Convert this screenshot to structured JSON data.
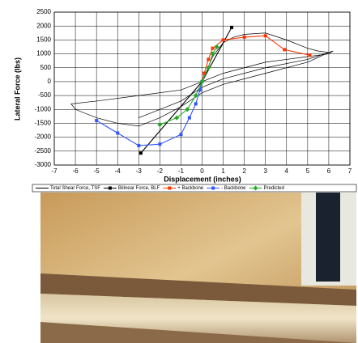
{
  "chart_data": {
    "type": "line",
    "x_label": "Displacement (inches)",
    "y_label": "Lateral Force (lbs)",
    "xlim": [
      -7,
      7
    ],
    "xticks": [
      -7,
      -6,
      -5,
      -4,
      -3,
      -2,
      -1,
      0,
      1,
      2,
      3,
      4,
      5,
      6,
      7
    ],
    "ylim": [
      -3000,
      2500
    ],
    "yticks": [
      -3000,
      -2500,
      -2000,
      -1500,
      -1000,
      -500,
      0,
      500,
      1000,
      1500,
      2000,
      2500
    ],
    "grid": true,
    "legend": "bottom",
    "series": [
      {
        "name": "Total Shear Force, TSF",
        "color": "#000000",
        "marker": "none",
        "x": [
          0,
          0.5,
          1,
          1.5,
          2,
          3,
          4,
          5,
          5.5,
          6,
          5,
          3,
          1,
          0,
          -1,
          -2,
          -3,
          -4,
          -5,
          -6,
          -6.2,
          -5,
          -3,
          -1,
          0,
          1,
          2,
          3,
          4,
          5,
          6,
          6.2,
          5,
          3,
          1,
          0,
          -1,
          -2,
          -3
        ],
        "values": [
          0,
          900,
          1400,
          1600,
          1700,
          1750,
          1500,
          1200,
          1100,
          1050,
          700,
          300,
          -100,
          -400,
          -900,
          -1300,
          -1600,
          -1500,
          -1300,
          -1000,
          -800,
          -700,
          -500,
          -300,
          0,
          300,
          500,
          700,
          800,
          900,
          1000,
          1100,
          800,
          500,
          100,
          -200,
          -700,
          -1000,
          -1300
        ]
      },
      {
        "name": "Bilinear Force, BLF",
        "color": "#000000",
        "marker": "square",
        "x": [
          -2.9,
          0,
          1.4
        ],
        "values": [
          -2570,
          0,
          1950
        ]
      },
      {
        "name": "+ Backbone",
        "color": "#ff3300",
        "marker": "square",
        "x": [
          0,
          0.1,
          0.3,
          0.5,
          1,
          2,
          3,
          3.9,
          5.1
        ],
        "values": [
          0,
          300,
          800,
          1200,
          1500,
          1600,
          1650,
          1150,
          950
        ]
      },
      {
        "name": "- Backbone",
        "color": "#3355ff",
        "marker": "square",
        "x": [
          0,
          -0.1,
          -0.3,
          -0.6,
          -1,
          -2,
          -3,
          -4,
          -5
        ],
        "values": [
          0,
          -300,
          -800,
          -1300,
          -1900,
          -2250,
          -2300,
          -1850,
          -1400
        ]
      },
      {
        "name": "Predicted",
        "color": "#22aa22",
        "marker": "diamond",
        "x": [
          -2,
          -1.2,
          -0.7,
          -0.3,
          0,
          0.3,
          0.5,
          0.7
        ],
        "values": [
          -1550,
          -1300,
          -1000,
          -500,
          0,
          500,
          1000,
          1250
        ]
      }
    ]
  }
}
